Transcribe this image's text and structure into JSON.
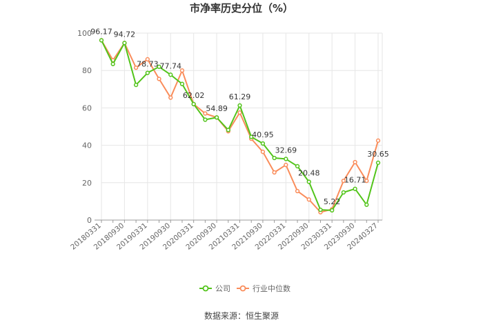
{
  "title": "市净率历史分位（%）",
  "source": "数据来源：恒生聚源",
  "colors": {
    "company": "#52c41a",
    "industry": "#fa8c5a",
    "grid": "#e6e6e6",
    "axis": "#999999"
  },
  "legend": [
    {
      "name": "公司",
      "color": "#52c41a",
      "icon": "line-circle-icon"
    },
    {
      "name": "行业中位数",
      "color": "#fa8c5a",
      "icon": "line-circle-icon"
    }
  ],
  "chart_data": {
    "type": "line",
    "title": "市净率历史分位（%）",
    "xlabel": "",
    "ylabel": "",
    "ylim": [
      0,
      100
    ],
    "yticks": [
      0,
      20,
      40,
      60,
      80,
      100
    ],
    "grid": true,
    "legend_position": "bottom",
    "x": [
      "20180331",
      "20180630",
      "20180930",
      "20181231",
      "20190331",
      "20190630",
      "20190930",
      "20191231",
      "20200331",
      "20200630",
      "20200930",
      "20201231",
      "20210331",
      "20210630",
      "20210930",
      "20211231",
      "20220331",
      "20220630",
      "20220930",
      "20221231",
      "20230331",
      "20230630",
      "20230930",
      "20231231",
      "20240327"
    ],
    "xtick_labels": [
      "20180331",
      "20180930",
      "20190331",
      "20190930",
      "20200331",
      "20200930",
      "20210331",
      "20210930",
      "20220331",
      "20220930",
      "20230331",
      "20230930",
      "20240327"
    ],
    "series": [
      {
        "name": "公司",
        "color": "#52c41a",
        "values": [
          96.17,
          83.5,
          94.72,
          72.3,
          78.73,
          82.0,
          77.74,
          72.8,
          62.02,
          53.7,
          54.89,
          48.2,
          61.29,
          44.5,
          40.95,
          33.2,
          32.69,
          28.8,
          20.48,
          5.5,
          5.22,
          14.8,
          16.71,
          8.2,
          30.65
        ]
      },
      {
        "name": "行业中位数",
        "color": "#fa8c5a",
        "values": [
          96.17,
          85.5,
          94.72,
          81.5,
          86.0,
          75.5,
          65.5,
          80.0,
          62.02,
          57.0,
          54.89,
          47.5,
          57.5,
          43.5,
          36.5,
          25.5,
          29.5,
          15.5,
          11.0,
          4.2,
          5.8,
          21.0,
          31.0,
          21.0,
          42.5
        ]
      }
    ],
    "data_labels": [
      {
        "index": 0,
        "text": "96.17"
      },
      {
        "index": 2,
        "text": "94.72"
      },
      {
        "index": 4,
        "text": "78.73"
      },
      {
        "index": 6,
        "text": "77.74"
      },
      {
        "index": 8,
        "text": "62.02"
      },
      {
        "index": 10,
        "text": "54.89"
      },
      {
        "index": 12,
        "text": "61.29"
      },
      {
        "index": 14,
        "text": "40.95"
      },
      {
        "index": 16,
        "text": "32.69"
      },
      {
        "index": 18,
        "text": "20.48"
      },
      {
        "index": 20,
        "text": "5.22"
      },
      {
        "index": 22,
        "text": "16.71"
      },
      {
        "index": 24,
        "text": "30.65"
      }
    ]
  }
}
